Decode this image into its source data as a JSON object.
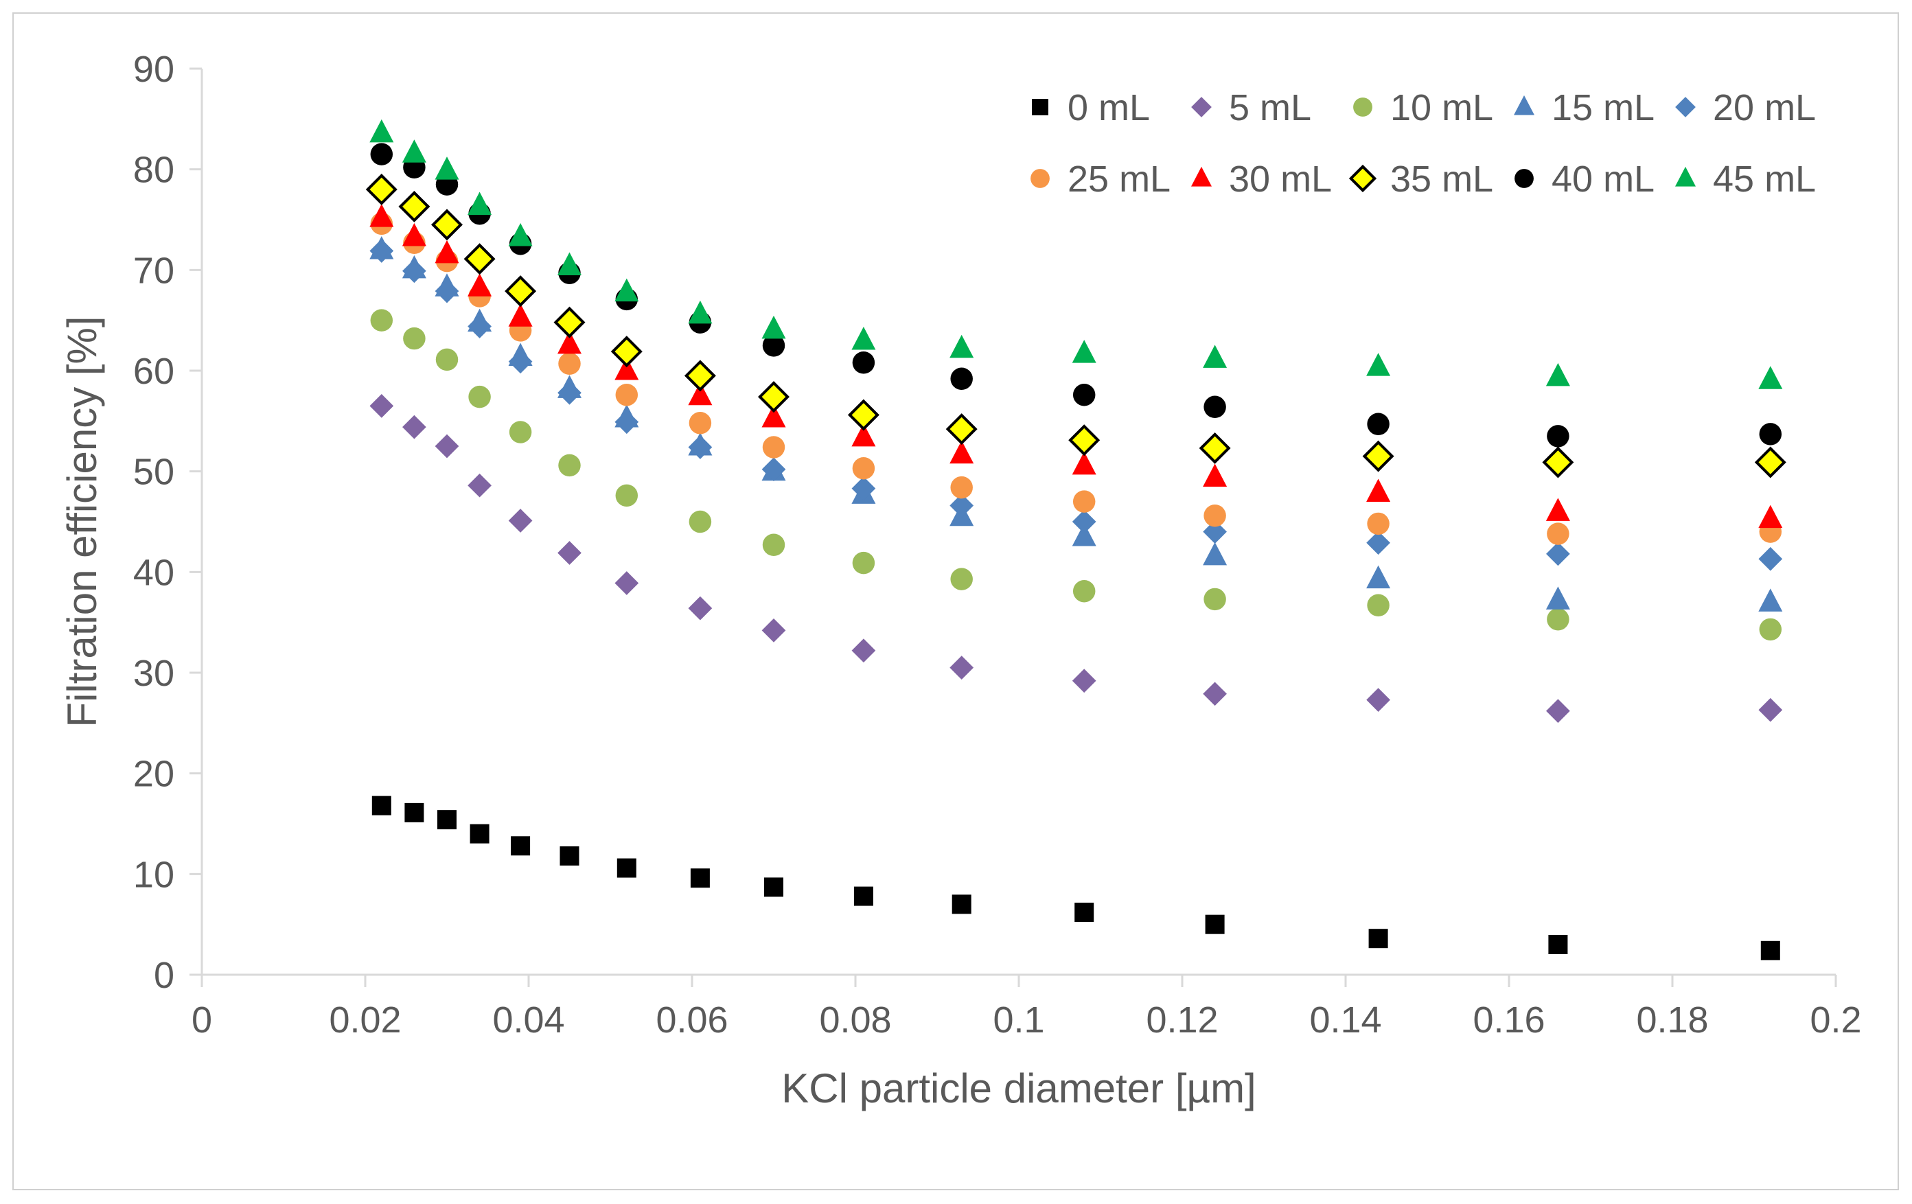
{
  "chart_data": {
    "type": "scatter",
    "title": "",
    "xlabel": "KCl particle diameter [µm]",
    "ylabel": "Filtration efficiency [%]",
    "xlim": [
      0,
      0.2
    ],
    "ylim": [
      0,
      90
    ],
    "x_ticks": [
      "0",
      "0.02",
      "0.04",
      "0.06",
      "0.08",
      "0.1",
      "0.12",
      "0.14",
      "0.16",
      "0.18",
      "0.2"
    ],
    "y_ticks": [
      "0",
      "10",
      "20",
      "30",
      "40",
      "50",
      "60",
      "70",
      "80",
      "90"
    ],
    "grid": false,
    "legend_position": "top-right",
    "x": [
      0.022,
      0.026,
      0.03,
      0.034,
      0.039,
      0.045,
      0.052,
      0.061,
      0.07,
      0.081,
      0.093,
      0.108,
      0.124,
      0.144,
      0.166,
      0.192
    ],
    "series": [
      {
        "name": "0 mL",
        "marker": "square",
        "color": "#000000",
        "values": [
          16.8,
          16.1,
          15.4,
          14.0,
          12.8,
          11.8,
          10.6,
          9.6,
          8.7,
          7.8,
          7.0,
          6.2,
          5.0,
          3.6,
          3.0,
          2.4
        ]
      },
      {
        "name": "5 mL",
        "marker": "diamond",
        "color": "#8064a2",
        "values": [
          56.5,
          54.4,
          52.5,
          48.6,
          45.1,
          41.9,
          38.9,
          36.4,
          34.2,
          32.2,
          30.5,
          29.2,
          27.9,
          27.3,
          26.2,
          26.3
        ]
      },
      {
        "name": "10 mL",
        "marker": "circle",
        "color": "#9bbb59",
        "values": [
          65.0,
          63.2,
          61.1,
          57.4,
          53.9,
          50.6,
          47.6,
          45.0,
          42.7,
          40.9,
          39.3,
          38.1,
          37.3,
          36.7,
          35.3,
          34.3
        ]
      },
      {
        "name": "15 mL",
        "marker": "triangle",
        "color": "#4f81bd",
        "values": [
          72.0,
          70.1,
          68.3,
          64.8,
          61.4,
          58.2,
          55.3,
          52.5,
          50.0,
          47.7,
          45.5,
          43.5,
          41.6,
          39.3,
          37.2,
          37.0
        ]
      },
      {
        "name": "20 mL",
        "marker": "diamond",
        "color": "#4f81bd",
        "values": [
          71.9,
          69.9,
          67.9,
          64.4,
          60.9,
          57.8,
          54.9,
          52.4,
          50.2,
          48.3,
          46.6,
          45.0,
          44.0,
          42.9,
          41.8,
          41.3
        ]
      },
      {
        "name": "25 mL",
        "marker": "circle",
        "color": "#f79646",
        "values": [
          74.6,
          72.7,
          70.9,
          67.4,
          64.0,
          60.7,
          57.6,
          54.8,
          52.4,
          50.3,
          48.4,
          47.0,
          45.6,
          44.8,
          43.8,
          44.0
        ]
      },
      {
        "name": "30 mL",
        "marker": "triangle",
        "color": "#ff0000",
        "values": [
          75.2,
          73.3,
          71.6,
          68.3,
          65.3,
          62.6,
          60.0,
          57.5,
          55.3,
          53.4,
          51.7,
          50.6,
          49.4,
          47.9,
          46.0,
          45.3
        ]
      },
      {
        "name": "35 mL",
        "marker": "diamond-outline",
        "color": "#ffff00",
        "values": [
          78.0,
          76.3,
          74.5,
          71.1,
          67.9,
          64.8,
          61.9,
          59.5,
          57.4,
          55.6,
          54.2,
          53.1,
          52.3,
          51.5,
          50.9,
          50.9
        ]
      },
      {
        "name": "40 mL",
        "marker": "circle",
        "color": "#000000",
        "values": [
          81.5,
          80.2,
          78.5,
          75.6,
          72.6,
          69.7,
          67.1,
          64.8,
          62.5,
          60.8,
          59.2,
          57.6,
          56.4,
          54.7,
          53.5,
          53.7
        ]
      },
      {
        "name": "45 mL",
        "marker": "triangle",
        "color": "#00b050",
        "values": [
          83.6,
          81.6,
          79.9,
          76.4,
          73.3,
          70.4,
          67.8,
          65.6,
          64.1,
          63.0,
          62.2,
          61.7,
          61.2,
          60.4,
          59.4,
          59.1
        ]
      }
    ]
  }
}
